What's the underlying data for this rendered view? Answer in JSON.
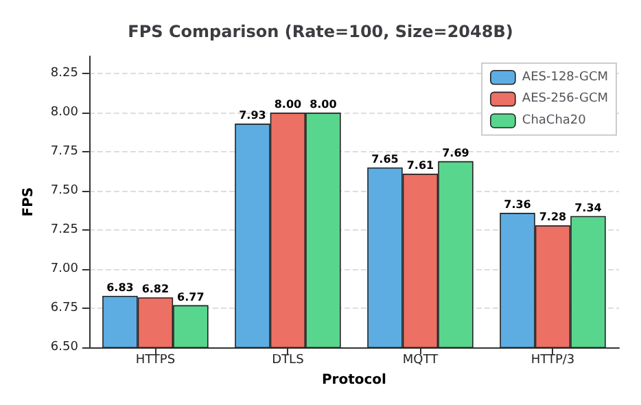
{
  "chart_data": {
    "type": "bar",
    "title": "FPS Comparison (Rate=100, Size=2048B)",
    "xlabel": "Protocol",
    "ylabel": "FPS",
    "categories": [
      "HTTPS",
      "DTLS",
      "MQTT",
      "HTTP/3"
    ],
    "series": [
      {
        "name": "AES-128-GCM",
        "color": "#5dade2",
        "values": [
          6.83,
          7.93,
          7.65,
          7.36
        ],
        "value_labels": [
          "6.83",
          "7.93",
          "7.65",
          "7.36"
        ]
      },
      {
        "name": "AES-256-GCM",
        "color": "#ec7063",
        "values": [
          6.82,
          8.0,
          7.61,
          7.28
        ],
        "value_labels": [
          "6.82",
          "8.00",
          "7.61",
          "7.28"
        ]
      },
      {
        "name": "ChaCha20",
        "color": "#58d68d",
        "values": [
          6.77,
          8.0,
          7.69,
          7.34
        ],
        "value_labels": [
          "6.77",
          "8.00",
          "7.69",
          "7.34"
        ]
      }
    ],
    "ylim": [
      6.5,
      8.36
    ],
    "yticks": [
      {
        "value": 6.5,
        "label": "6.50"
      },
      {
        "value": 6.75,
        "label": "6.75"
      },
      {
        "value": 7.0,
        "label": "7.00"
      },
      {
        "value": 7.25,
        "label": "7.25"
      },
      {
        "value": 7.5,
        "label": "7.50"
      },
      {
        "value": 7.75,
        "label": "7.75"
      },
      {
        "value": 8.0,
        "label": "8.00"
      },
      {
        "value": 8.25,
        "label": "8.25"
      }
    ],
    "grid": "y",
    "legend": "top right"
  }
}
